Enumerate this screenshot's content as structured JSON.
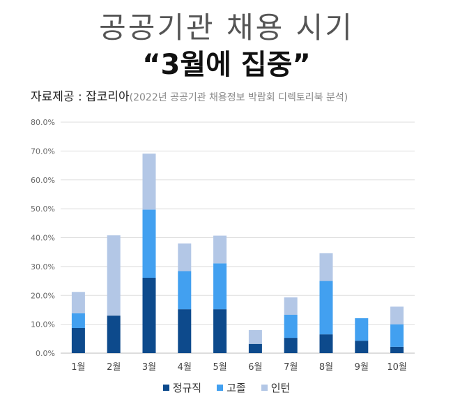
{
  "title": "공공기관 채용 시기",
  "subtitle": "“3월에 집중”",
  "source": {
    "label": "자료제공 : 잡코리아",
    "detail": "(2022년 공공기관 채용정보 박람회 디렉토리북 분석)"
  },
  "colors": {
    "정규직": "#0d4a8c",
    "고졸": "#42a0f0",
    "인턴": "#b3c7e6",
    "grid": "#dedede"
  },
  "chart_data": {
    "type": "bar",
    "stacked": true,
    "categories": [
      "1월",
      "2월",
      "3월",
      "4월",
      "5월",
      "6월",
      "7월",
      "8월",
      "9월",
      "10월"
    ],
    "series": [
      {
        "name": "정규직",
        "values": [
          8.7,
          13.0,
          26.1,
          15.2,
          15.2,
          3.2,
          5.3,
          6.5,
          4.3,
          2.2
        ]
      },
      {
        "name": "고졸",
        "values": [
          5.1,
          0.0,
          23.6,
          13.2,
          15.9,
          0.0,
          8.0,
          18.5,
          7.8,
          7.8
        ]
      },
      {
        "name": "인턴",
        "values": [
          7.4,
          27.8,
          19.4,
          9.6,
          9.6,
          4.8,
          6.0,
          9.6,
          0.0,
          6.1
        ]
      }
    ],
    "ylim": [
      0,
      80
    ],
    "yticks": [
      "0.0%",
      "10.0%",
      "20.0%",
      "30.0%",
      "40.0%",
      "50.0%",
      "60.0%",
      "70.0%",
      "80.0%"
    ],
    "grid": true,
    "legend": "bottom"
  }
}
